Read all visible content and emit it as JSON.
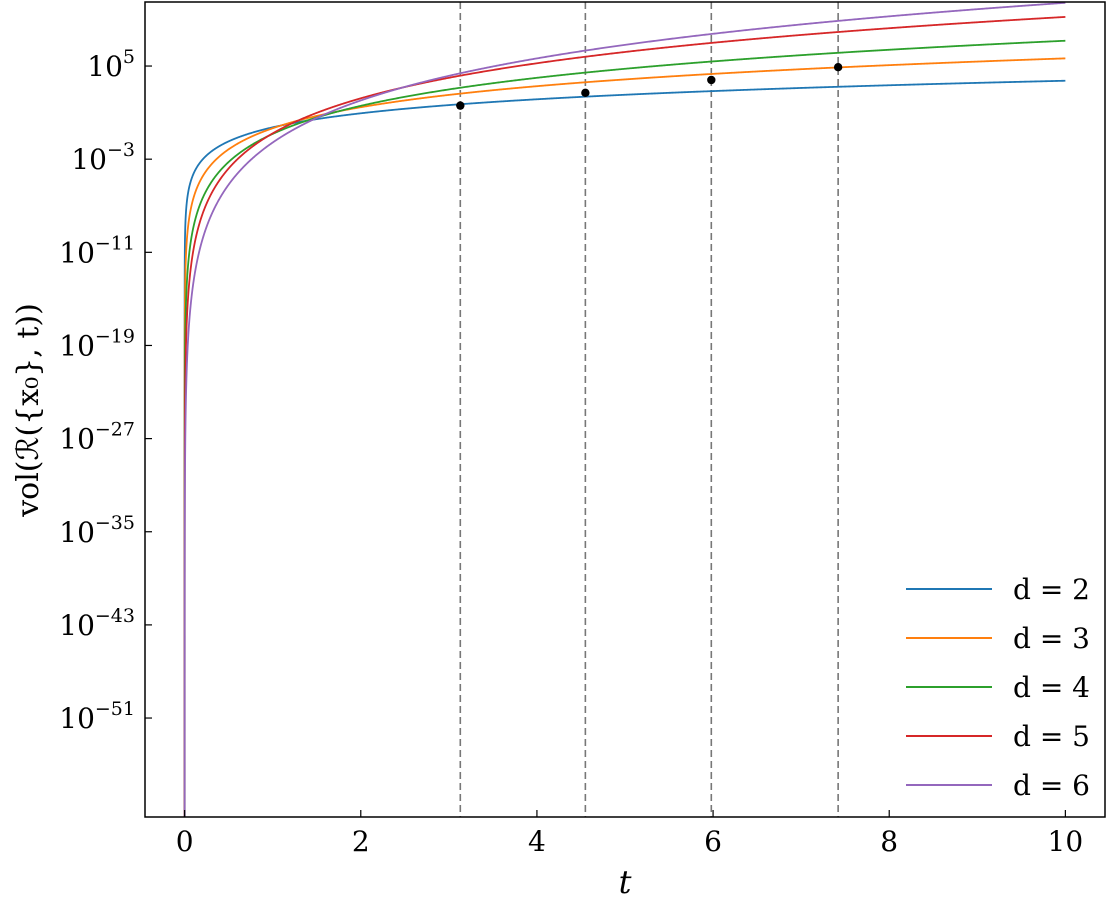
{
  "chart_data": {
    "type": "line",
    "xlabel": "t",
    "ylabel": "vol(ℛ({x₀}, t))",
    "xlim": [
      -0.45,
      10.45
    ],
    "ylim_exp": [
      -59.5,
      10.5
    ],
    "yscale": "log",
    "x_ticks": [
      "0",
      "2",
      "4",
      "6",
      "8",
      "10"
    ],
    "y_ticks": [
      {
        "base": "10",
        "exp": "5"
      },
      {
        "base": "10",
        "exp": "−3"
      },
      {
        "base": "10",
        "exp": "−11"
      },
      {
        "base": "10",
        "exp": "−19"
      },
      {
        "base": "10",
        "exp": "−27"
      },
      {
        "base": "10",
        "exp": "−35"
      },
      {
        "base": "10",
        "exp": "−43"
      },
      {
        "base": "10",
        "exp": "−51"
      }
    ],
    "legend_position": "lower-right",
    "series": [
      {
        "name": "d = 2",
        "d": 2,
        "color": "#1f77b4"
      },
      {
        "name": "d = 3",
        "d": 3,
        "color": "#ff7f0e"
      },
      {
        "name": "d = 4",
        "d": 4,
        "color": "#2ca02c"
      },
      {
        "name": "d = 5",
        "d": 5,
        "color": "#d62728"
      },
      {
        "name": "d = 6",
        "d": 6,
        "color": "#9467bd"
      }
    ],
    "vertical_lines": [
      3.13,
      4.55,
      5.98,
      7.42
    ],
    "intersection_points": [
      {
        "x": 3.13,
        "y_exp": 1.6
      },
      {
        "x": 4.55,
        "y_exp": 2.7
      },
      {
        "x": 5.98,
        "y_exp": 3.8
      },
      {
        "x": 7.42,
        "y_exp": 4.9
      }
    ]
  }
}
